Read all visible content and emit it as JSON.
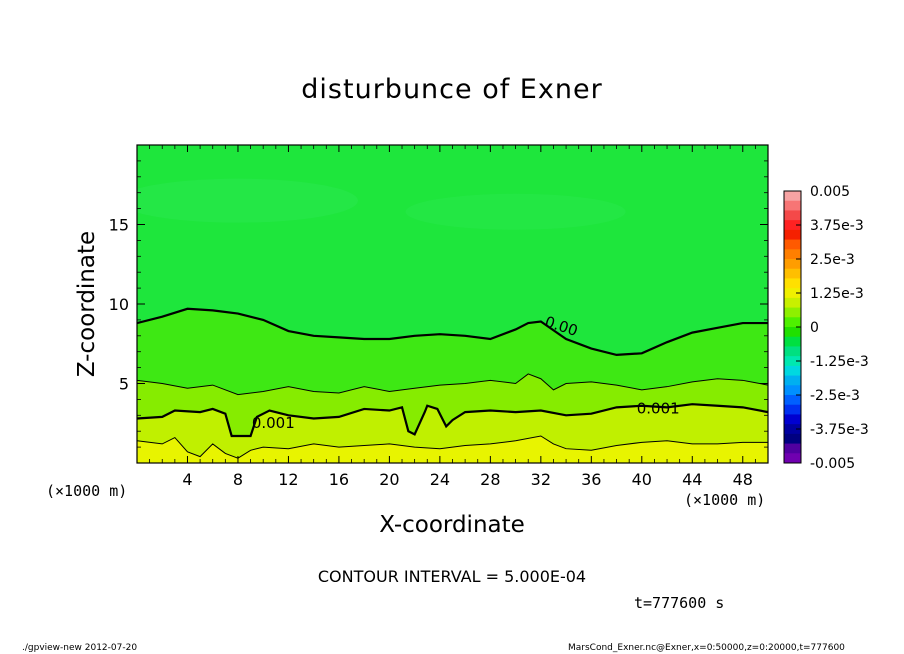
{
  "chart_data": {
    "type": "heatmap",
    "title": "disturbunce of Exner",
    "xlabel": "X-coordinate",
    "ylabel": "Z-coordinate",
    "x_unit": "(×1000 m)",
    "y_unit": "(×1000 m)",
    "xlim": [
      0,
      50
    ],
    "ylim": [
      0,
      20
    ],
    "x_ticks": [
      "4",
      "8",
      "12",
      "16",
      "20",
      "24",
      "28",
      "32",
      "36",
      "40",
      "44",
      "48"
    ],
    "y_ticks": [
      "5",
      "10",
      "15"
    ],
    "colorbar": {
      "labels": [
        "0.005",
        "3.75e-3",
        "2.5e-3",
        "1.25e-3",
        "0",
        "-1.25e-3",
        "-2.5e-3",
        "-3.75e-3",
        "-0.005"
      ],
      "range": [
        -0.005,
        0.005
      ],
      "colors_top_to_bottom": [
        "#f7a3a3",
        "#f77575",
        "#f44949",
        "#ff2222",
        "#f52000",
        "#ff5a00",
        "#ff7f00",
        "#ff9d00",
        "#ffbf00",
        "#ffe000",
        "#f0f000",
        "#c8f000",
        "#8ef000",
        "#4ef000",
        "#20e000",
        "#00e040",
        "#00e080",
        "#00e8b0",
        "#00d8e0",
        "#00b0f0",
        "#0090ff",
        "#0060ff",
        "#0030f0",
        "#0000d0",
        "#0000a0",
        "#000080",
        "#5000a0",
        "#7000b0"
      ]
    },
    "contour_labels": [
      "0.00",
      "0.001",
      "0.001"
    ],
    "contour_interval": "CONTOUR INTERVAL = 5.000E-04",
    "contours": [
      {
        "level": 0.0,
        "style": "thick",
        "points": [
          [
            0,
            8.8
          ],
          [
            2,
            9.2
          ],
          [
            4,
            9.7
          ],
          [
            6,
            9.6
          ],
          [
            8,
            9.4
          ],
          [
            10,
            9.0
          ],
          [
            12,
            8.3
          ],
          [
            14,
            8.0
          ],
          [
            16,
            7.9
          ],
          [
            18,
            7.8
          ],
          [
            20,
            7.8
          ],
          [
            22,
            8.0
          ],
          [
            24,
            8.1
          ],
          [
            26,
            8.0
          ],
          [
            28,
            7.8
          ],
          [
            30,
            8.4
          ],
          [
            31,
            8.8
          ],
          [
            32,
            8.9
          ],
          [
            34,
            7.8
          ],
          [
            36,
            7.2
          ],
          [
            38,
            6.8
          ],
          [
            40,
            6.9
          ],
          [
            42,
            7.6
          ],
          [
            44,
            8.2
          ],
          [
            46,
            8.5
          ],
          [
            48,
            8.8
          ],
          [
            50,
            8.8
          ]
        ]
      },
      {
        "level": 0.0005,
        "style": "thin",
        "points": [
          [
            0,
            5.2
          ],
          [
            2,
            5.0
          ],
          [
            4,
            4.7
          ],
          [
            6,
            4.9
          ],
          [
            8,
            4.3
          ],
          [
            10,
            4.5
          ],
          [
            12,
            4.8
          ],
          [
            14,
            4.5
          ],
          [
            16,
            4.4
          ],
          [
            18,
            4.8
          ],
          [
            20,
            4.5
          ],
          [
            22,
            4.7
          ],
          [
            24,
            4.9
          ],
          [
            26,
            5.0
          ],
          [
            28,
            5.2
          ],
          [
            30,
            5.0
          ],
          [
            31,
            5.6
          ],
          [
            32,
            5.3
          ],
          [
            33,
            4.6
          ],
          [
            34,
            5.0
          ],
          [
            36,
            5.1
          ],
          [
            38,
            4.9
          ],
          [
            40,
            4.6
          ],
          [
            42,
            4.8
          ],
          [
            44,
            5.1
          ],
          [
            46,
            5.3
          ],
          [
            48,
            5.2
          ],
          [
            50,
            4.9
          ]
        ]
      },
      {
        "level": 0.001,
        "style": "thick",
        "points": [
          [
            0,
            2.8
          ],
          [
            2,
            2.9
          ],
          [
            3,
            3.3
          ],
          [
            5,
            3.2
          ],
          [
            6,
            3.4
          ],
          [
            7,
            3.1
          ],
          [
            7.5,
            1.7
          ],
          [
            9,
            1.7
          ],
          [
            9.5,
            2.9
          ],
          [
            10.5,
            3.3
          ],
          [
            12,
            3.0
          ],
          [
            14,
            2.8
          ],
          [
            16,
            2.9
          ],
          [
            18,
            3.4
          ],
          [
            20,
            3.3
          ],
          [
            21,
            3.5
          ],
          [
            21.5,
            2.0
          ],
          [
            22,
            1.8
          ],
          [
            22.8,
            3.2
          ],
          [
            23,
            3.6
          ],
          [
            23.8,
            3.4
          ],
          [
            24.5,
            2.3
          ],
          [
            25,
            2.7
          ],
          [
            26,
            3.2
          ],
          [
            28,
            3.3
          ],
          [
            30,
            3.2
          ],
          [
            32,
            3.3
          ],
          [
            34,
            3.0
          ],
          [
            36,
            3.1
          ],
          [
            38,
            3.5
          ],
          [
            40,
            3.6
          ],
          [
            42,
            3.5
          ],
          [
            44,
            3.7
          ],
          [
            46,
            3.6
          ],
          [
            48,
            3.5
          ],
          [
            50,
            3.2
          ]
        ]
      },
      {
        "level": 0.0015,
        "style": "thin",
        "points": [
          [
            0,
            1.4
          ],
          [
            2,
            1.2
          ],
          [
            3,
            1.6
          ],
          [
            4,
            0.7
          ],
          [
            5,
            0.4
          ],
          [
            6,
            1.2
          ],
          [
            7,
            0.6
          ],
          [
            8,
            0.3
          ],
          [
            9,
            0.8
          ],
          [
            10,
            1.0
          ],
          [
            12,
            0.9
          ],
          [
            14,
            1.2
          ],
          [
            16,
            1.0
          ],
          [
            18,
            1.1
          ],
          [
            20,
            1.2
          ],
          [
            22,
            1.0
          ],
          [
            24,
            0.9
          ],
          [
            26,
            1.1
          ],
          [
            28,
            1.2
          ],
          [
            30,
            1.4
          ],
          [
            32,
            1.7
          ],
          [
            33,
            1.2
          ],
          [
            34,
            0.9
          ],
          [
            36,
            0.8
          ],
          [
            38,
            1.1
          ],
          [
            40,
            1.3
          ],
          [
            42,
            1.4
          ],
          [
            44,
            1.2
          ],
          [
            46,
            1.2
          ],
          [
            48,
            1.3
          ],
          [
            50,
            1.3
          ]
        ]
      }
    ]
  },
  "interval_text": "CONTOUR INTERVAL = 5.000E-04",
  "time_text": "t=777600 s",
  "footer_left": "./gpview-new  2012-07-20",
  "footer_right": "MarsCond_Exner.nc@Exner,x=0:50000,z=0:20000,t=777600",
  "colors": {
    "upper": "#1ee63c",
    "mid": "#3ee814",
    "low_mid": "#86ec00",
    "low": "#c0f000",
    "bottom": "#e8f400"
  }
}
